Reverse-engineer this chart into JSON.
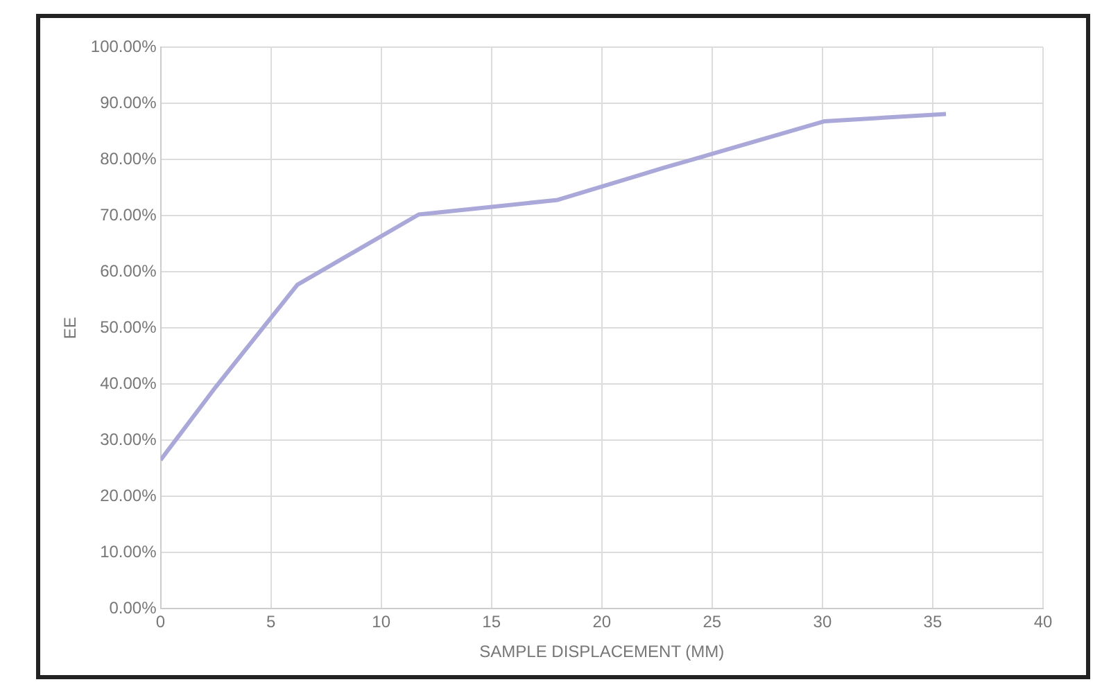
{
  "chart_data": {
    "type": "line",
    "xlabel": "SAMPLE DISPLACEMENT (MM)",
    "ylabel": "EE",
    "x": [
      0,
      2.5,
      6.2,
      11.7,
      18,
      22.8,
      30.1,
      35.6
    ],
    "series": [
      {
        "color": "#a9a8d8",
        "values": [
          26.5,
          39.5,
          57.7,
          70.2,
          72.8,
          78.5,
          86.8,
          88.1
        ]
      }
    ],
    "xlim": [
      0,
      40
    ],
    "xticks": [
      0,
      5,
      10,
      15,
      20,
      25,
      30,
      35,
      40
    ],
    "ylim": [
      0,
      100
    ],
    "yticks": [
      {
        "value": 0,
        "label": "0.00%"
      },
      {
        "value": 10,
        "label": "10.00%"
      },
      {
        "value": 20,
        "label": "20.00%"
      },
      {
        "value": 30,
        "label": "30.00%"
      },
      {
        "value": 40,
        "label": "40.00%"
      },
      {
        "value": 50,
        "label": "50.00%"
      },
      {
        "value": 60,
        "label": "60.00%"
      },
      {
        "value": 70,
        "label": "70.00%"
      },
      {
        "value": 80,
        "label": "80.00%"
      },
      {
        "value": 90,
        "label": "90.00%"
      },
      {
        "value": 100,
        "label": "100.00%"
      }
    ],
    "grid": true,
    "legend": false,
    "marker": "none",
    "line_style": "solid"
  }
}
